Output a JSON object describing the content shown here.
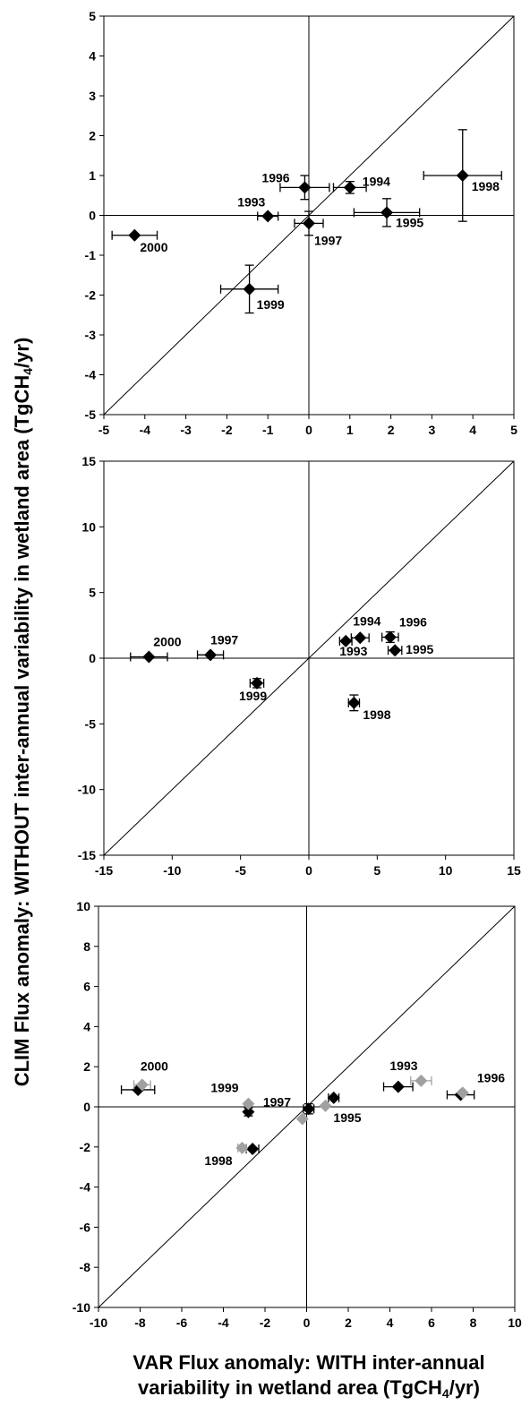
{
  "ylabel": {
    "pre": "CLIM Flux anomaly: WITHOUT inter-annual variability in wetland area (TgCH",
    "sub": "4",
    "post": "/yr)"
  },
  "xlabel": {
    "line1": "VAR Flux anomaly: WITH inter-annual",
    "line2_pre": "variability in wetland area (TgCH",
    "line2_sub": "4",
    "line2_post": "/yr)"
  },
  "colors": {
    "black_series": "#000000",
    "grey_series": "#a0a0a0"
  },
  "chart_data": [
    {
      "type": "scatter",
      "xlim": [
        -5,
        5
      ],
      "ylim": [
        -5,
        5
      ],
      "xticks": [
        -5,
        -4,
        -3,
        -2,
        -1,
        0,
        1,
        2,
        3,
        4,
        5
      ],
      "yticks": [
        -5,
        -4,
        -3,
        -2,
        -1,
        0,
        1,
        2,
        3,
        4,
        5
      ],
      "grid": false,
      "reference_lines": [
        "x=0",
        "y=0",
        "y=x"
      ],
      "series": [
        {
          "color": "#000000",
          "points": [
            {
              "label": "1993",
              "x": -1.0,
              "y": -0.02,
              "xerr": 0.25,
              "yerr": 0
            },
            {
              "label": "1994",
              "x": 1.0,
              "y": 0.7,
              "xerr": 0.4,
              "yerr": 0.15
            },
            {
              "label": "1995",
              "x": 1.9,
              "y": 0.07,
              "xerr": 0.8,
              "yerr": 0.35
            },
            {
              "label": "1996",
              "x": -0.1,
              "y": 0.7,
              "xerr": 0.6,
              "yerr": 0.3
            },
            {
              "label": "1997",
              "x": 0.0,
              "y": -0.2,
              "xerr": 0.35,
              "yerr": 0.3
            },
            {
              "label": "1998",
              "x": 3.75,
              "y": 1.0,
              "xerr": 0.95,
              "yerr": 1.15
            },
            {
              "label": "1999",
              "x": -1.45,
              "y": -1.85,
              "xerr": 0.7,
              "yerr": 0.6
            },
            {
              "label": "2000",
              "x": -4.25,
              "y": -0.5,
              "xerr": 0.55,
              "yerr": 0
            }
          ]
        }
      ]
    },
    {
      "type": "scatter",
      "xlim": [
        -15,
        15
      ],
      "ylim": [
        -15,
        15
      ],
      "xticks": [
        -15,
        -10,
        -5,
        0,
        5,
        10,
        15
      ],
      "yticks": [
        -15,
        -10,
        -5,
        0,
        5,
        10,
        15
      ],
      "grid": false,
      "reference_lines": [
        "x=0",
        "y=0",
        "y=x"
      ],
      "series": [
        {
          "color": "#000000",
          "points": [
            {
              "label": "1993",
              "x": 2.7,
              "y": 1.3,
              "xerr": 0.45,
              "yerr": 0
            },
            {
              "label": "1994",
              "x": 3.75,
              "y": 1.55,
              "xerr": 0.65,
              "yerr": 0
            },
            {
              "label": "1995",
              "x": 6.3,
              "y": 0.6,
              "xerr": 0.5,
              "yerr": 0
            },
            {
              "label": "1996",
              "x": 5.95,
              "y": 1.6,
              "xerr": 0.6,
              "yerr": 0.4
            },
            {
              "label": "1997",
              "x": -7.2,
              "y": 0.25,
              "xerr": 0.95,
              "yerr": 0
            },
            {
              "label": "1998",
              "x": 3.3,
              "y": -3.4,
              "xerr": 0.4,
              "yerr": 0.6
            },
            {
              "label": "1999",
              "x": -3.8,
              "y": -1.9,
              "xerr": 0.5,
              "yerr": 0.35
            },
            {
              "label": "2000",
              "x": -11.7,
              "y": 0.1,
              "xerr": 1.35,
              "yerr": 0
            }
          ]
        }
      ]
    },
    {
      "type": "scatter",
      "xlim": [
        -10,
        10
      ],
      "ylim": [
        -10,
        10
      ],
      "xticks": [
        -10,
        -8,
        -6,
        -4,
        -2,
        0,
        2,
        4,
        6,
        8,
        10
      ],
      "yticks": [
        -10,
        -8,
        -6,
        -4,
        -2,
        0,
        2,
        4,
        6,
        8,
        10
      ],
      "grid": false,
      "reference_lines": [
        "x=0",
        "y=0",
        "y=x"
      ],
      "series": [
        {
          "color": "#000000",
          "points": [
            {
              "label": "",
              "x": -8.1,
              "y": 0.85,
              "xerr": 0.8,
              "yerr": 0
            },
            {
              "label": "",
              "x": -2.8,
              "y": -0.25,
              "xerr": 0,
              "yerr": 0.2
            },
            {
              "label": "",
              "x": -2.6,
              "y": -2.1,
              "xerr": 0.3,
              "yerr": 0
            },
            {
              "label": "",
              "x": 0.1,
              "y": -0.1,
              "xerr": 0.25,
              "yerr": 0.25
            },
            {
              "label": "",
              "x": 1.3,
              "y": 0.45,
              "xerr": 0.25,
              "yerr": 0
            },
            {
              "label": "",
              "x": 4.4,
              "y": 1.0,
              "xerr": 0.7,
              "yerr": 0
            },
            {
              "label": "",
              "x": 7.4,
              "y": 0.6,
              "xerr": 0.65,
              "yerr": 0
            }
          ]
        },
        {
          "color": "#a0a0a0",
          "points": [
            {
              "label": "2000",
              "x": -7.9,
              "y": 1.1,
              "xerr": 0.4,
              "yerr": 0
            },
            {
              "label": "1999",
              "x": -2.8,
              "y": 0.15,
              "xerr": 0,
              "yerr": 0
            },
            {
              "label": "1998",
              "x": -3.1,
              "y": -2.05,
              "xerr": 0.2,
              "yerr": 0
            },
            {
              "label": "1997",
              "x": -0.2,
              "y": -0.6,
              "xerr": 0,
              "yerr": 0
            },
            {
              "label": "1995",
              "x": 0.9,
              "y": 0.05,
              "xerr": 0,
              "yerr": 0
            },
            {
              "label": "1993",
              "x": 5.5,
              "y": 1.3,
              "xerr": 0.5,
              "yerr": 0
            },
            {
              "label": "1996",
              "x": 7.5,
              "y": 0.7,
              "xerr": 0,
              "yerr": 0
            }
          ]
        }
      ]
    }
  ]
}
